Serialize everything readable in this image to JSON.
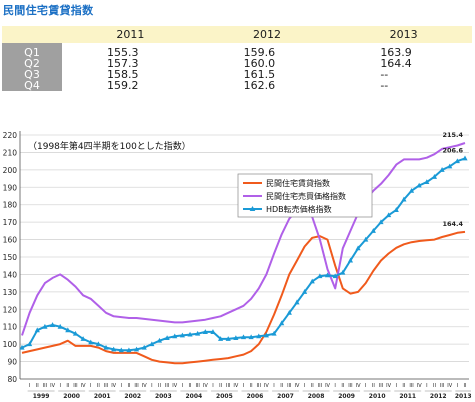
{
  "title": "民間住宅賃貸指数",
  "table": {
    "columns": [
      "2011",
      "2012",
      "2013"
    ],
    "rows": [
      {
        "label": "Q1",
        "values": [
          "155.3",
          "159.6",
          "163.9"
        ]
      },
      {
        "label": "Q2",
        "values": [
          "157.3",
          "160.0",
          "164.4"
        ]
      },
      {
        "label": "Q3",
        "values": [
          "158.5",
          "161.5",
          "--"
        ]
      },
      {
        "label": "Q4",
        "values": [
          "159.2",
          "162.6",
          "--"
        ]
      }
    ]
  },
  "chart_data": {
    "type": "line",
    "title": "（1998年第4四半期を100とした指数）",
    "xlabel": "",
    "ylabel": "",
    "ylim": [
      80,
      220
    ],
    "yticks": [
      80,
      90,
      100,
      110,
      120,
      130,
      140,
      150,
      160,
      170,
      180,
      190,
      200,
      210,
      220
    ],
    "years": [
      "1999",
      "2000",
      "2001",
      "2002",
      "2003",
      "2004",
      "2005",
      "2006",
      "2007",
      "2008",
      "2009",
      "2010",
      "2011",
      "2012",
      "2013"
    ],
    "quarter_labels": [
      "I",
      "II",
      "III",
      "IV"
    ],
    "x": [
      "1998 IV",
      "1999 I",
      "1999 II",
      "1999 III",
      "1999 IV",
      "2000 I",
      "2000 II",
      "2000 III",
      "2000 IV",
      "2001 I",
      "2001 II",
      "2001 III",
      "2001 IV",
      "2002 I",
      "2002 II",
      "2002 III",
      "2002 IV",
      "2003 I",
      "2003 II",
      "2003 III",
      "2003 IV",
      "2004 I",
      "2004 II",
      "2004 III",
      "2004 IV",
      "2005 I",
      "2005 II",
      "2005 III",
      "2005 IV",
      "2006 I",
      "2006 II",
      "2006 III",
      "2006 IV",
      "2007 I",
      "2007 II",
      "2007 III",
      "2007 IV",
      "2008 I",
      "2008 II",
      "2008 III",
      "2008 IV",
      "2009 I",
      "2009 II",
      "2009 III",
      "2009 IV",
      "2010 I",
      "2010 II",
      "2010 III",
      "2010 IV",
      "2011 I",
      "2011 II",
      "2011 III",
      "2011 IV",
      "2012 I",
      "2012 II",
      "2012 III",
      "2012 IV",
      "2013 I",
      "2013 II"
    ],
    "series": [
      {
        "name": "民間住宅賃貸指数",
        "color": "#f05a1c",
        "marker": "none",
        "end_label": "164.4",
        "values": [
          95,
          96,
          97,
          98,
          99,
          100,
          102,
          99,
          99,
          99,
          98,
          96,
          95,
          95,
          95,
          95,
          93,
          91,
          90,
          89.5,
          89,
          89,
          89.5,
          90,
          90.5,
          91,
          91.5,
          92,
          93,
          94,
          96,
          100,
          107,
          117,
          128,
          140,
          148,
          156,
          161,
          162,
          160,
          145,
          132,
          129,
          130,
          135,
          142,
          148,
          152,
          155.3,
          157.3,
          158.5,
          159.2,
          159.6,
          160.0,
          161.5,
          162.6,
          163.9,
          164.4
        ]
      },
      {
        "name": "民間住宅売買価格指数",
        "color": "#b060e8",
        "marker": "none",
        "end_label": "215.4",
        "values": [
          105,
          118,
          128,
          135,
          138,
          140,
          137,
          133,
          128,
          126,
          122,
          118,
          116,
          115.5,
          115,
          115,
          114.5,
          114,
          113.5,
          113,
          112.5,
          112.5,
          113,
          113.5,
          114,
          115,
          116,
          118,
          120,
          122,
          126,
          132,
          140,
          152,
          163,
          172,
          177,
          178,
          173,
          160,
          143,
          132,
          155,
          165,
          175,
          183,
          188,
          192,
          197,
          203,
          206,
          206,
          206,
          207,
          209,
          212,
          213,
          214,
          215.4
        ]
      },
      {
        "name": "HDB転売価格指数",
        "color": "#1a9ad6",
        "marker": "triangle",
        "end_label": "206.6",
        "values": [
          98,
          100,
          108,
          110,
          111,
          110,
          108,
          106,
          103,
          101,
          100,
          98,
          97,
          96.5,
          96.5,
          97,
          98,
          100,
          102,
          103.5,
          104.5,
          105,
          105.5,
          106,
          107,
          107,
          103,
          103,
          103.5,
          104,
          104,
          104.5,
          105,
          106,
          112,
          118,
          124,
          130,
          136,
          139,
          139.5,
          139,
          141,
          148,
          155,
          160,
          165,
          170,
          174,
          177,
          183,
          188,
          191,
          193,
          196,
          200,
          202,
          205,
          206.6
        ]
      }
    ],
    "legend_position": "center-inside",
    "grid": true
  }
}
